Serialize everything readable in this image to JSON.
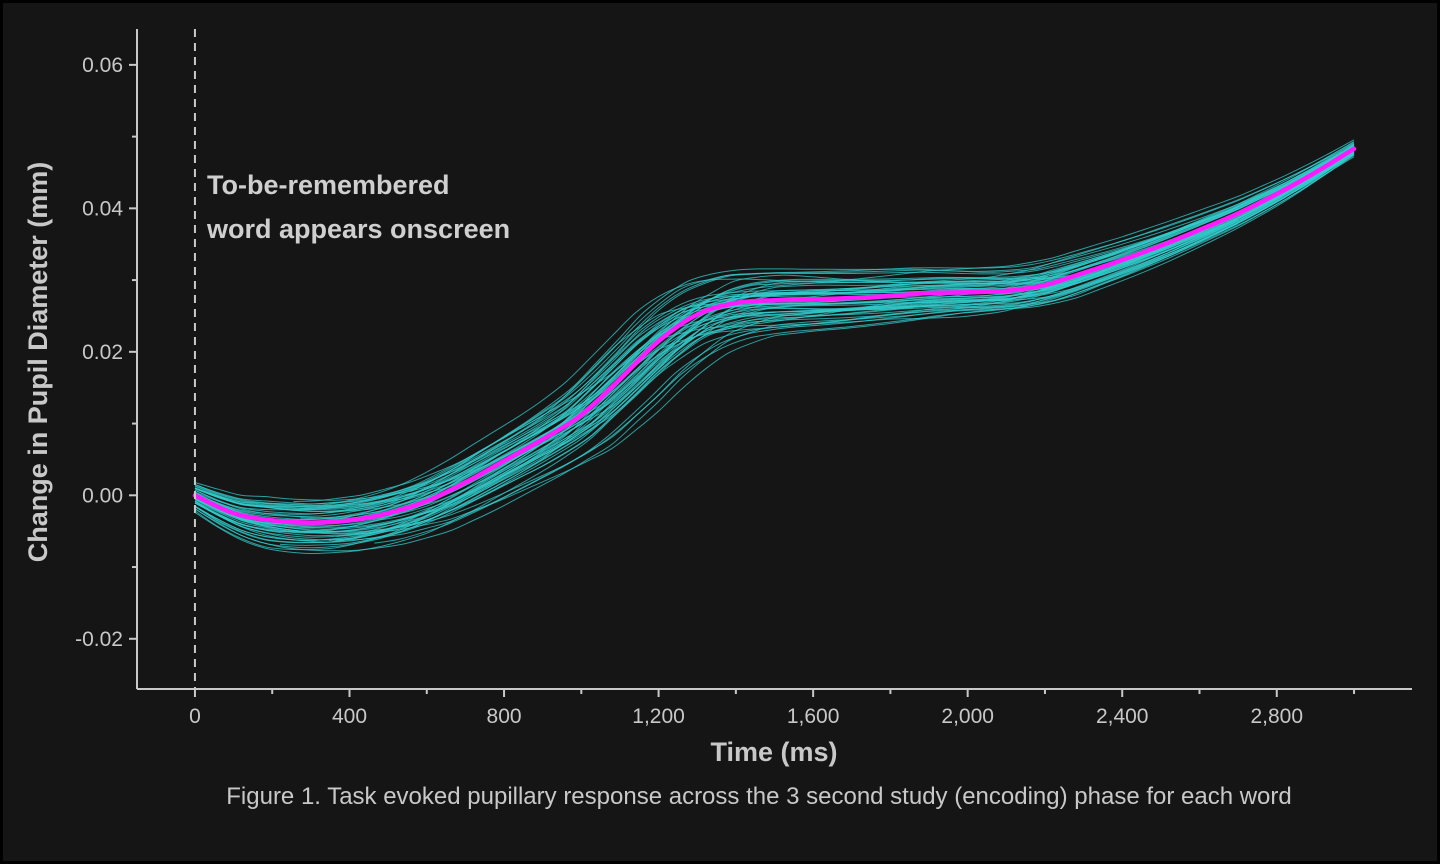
{
  "chart_data": {
    "type": "line",
    "title": "",
    "xlabel": "Time (ms)",
    "ylabel": "Change in Pupil Diameter (mm)",
    "caption": "Figure 1. Task evoked pupillary response across the 3 second study (encoding) phase for each word",
    "annotation": {
      "lines": [
        "To-be-remembered",
        "word appears onscreen"
      ],
      "at_x": 0
    },
    "xlim": [
      -150,
      3150
    ],
    "ylim": [
      -0.027,
      0.065
    ],
    "x_ticks": [
      0,
      400,
      800,
      1200,
      1600,
      2000,
      2400,
      2800
    ],
    "x_tick_labels": [
      "0",
      "400",
      "800",
      "1,200",
      "1,600",
      "2,000",
      "2,400",
      "2,800"
    ],
    "y_ticks": [
      0.06,
      0.04,
      0.02,
      0.0,
      -0.02
    ],
    "y_tick_labels": [
      "0.06",
      "0.04",
      "0.02",
      "0.00",
      "-0.02"
    ],
    "mean_series": {
      "name": "mean",
      "color": "#ff1aff",
      "x": [
        0,
        100,
        200,
        300,
        400,
        500,
        600,
        700,
        800,
        900,
        1000,
        1100,
        1200,
        1300,
        1400,
        1500,
        1600,
        1700,
        1800,
        1900,
        2000,
        2100,
        2200,
        2300,
        2400,
        2500,
        2600,
        2700,
        2800,
        2900,
        3000
      ],
      "y": [
        0.0,
        -0.0025,
        -0.0035,
        -0.0038,
        -0.0035,
        -0.0025,
        -0.0008,
        0.0018,
        0.0048,
        0.0078,
        0.0112,
        0.0162,
        0.0215,
        0.0252,
        0.0268,
        0.0272,
        0.0273,
        0.0275,
        0.0278,
        0.0282,
        0.0283,
        0.0285,
        0.0293,
        0.031,
        0.0328,
        0.0348,
        0.037,
        0.0393,
        0.042,
        0.045,
        0.0483
      ]
    },
    "individual_series_count": 60,
    "individual_color": "#33cccc"
  }
}
